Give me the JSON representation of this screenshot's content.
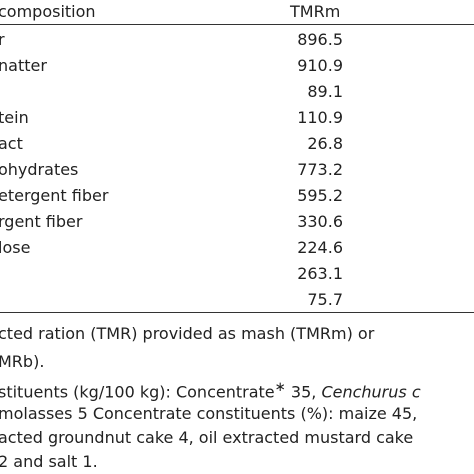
{
  "table": {
    "header": {
      "composition": "composition",
      "column": "TMRm"
    },
    "rows": [
      {
        "label": "r",
        "value": "896.5"
      },
      {
        "label": "natter",
        "value": "910.9"
      },
      {
        "label": "",
        "value": "89.1"
      },
      {
        "label": "tein",
        "value": "110.9"
      },
      {
        "label": "act",
        "value": "26.8"
      },
      {
        "label": "ohydrates",
        "value": "773.2"
      },
      {
        "label": "etergent fiber",
        "value": "595.2"
      },
      {
        "label": "rgent fiber",
        "value": "330.6"
      },
      {
        "label": "lose",
        "value": "224.6"
      },
      {
        "label": "",
        "value": "263.1"
      },
      {
        "label": "",
        "value": "75.7"
      }
    ]
  },
  "footnotes": {
    "line1": "cted ration (TMR) provided as mash (TMRm) or",
    "line2": "MRb).",
    "line3_a": "stituents (kg/100 kg): Concentrate",
    "line3_b": "35,",
    "line3_c": "Cenchurus c",
    "line4": "molasses 5 Concentrate constituents (%): maize 45,",
    "line5": "acted groundnut cake 4, oil extracted mustard cake",
    "line6": "2 and salt 1."
  }
}
